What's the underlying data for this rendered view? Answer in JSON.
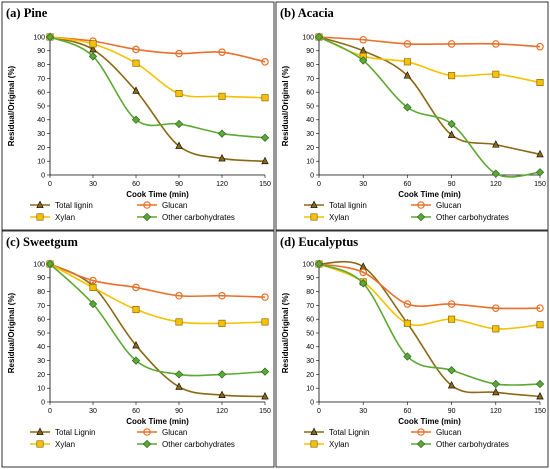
{
  "chart_data": [
    {
      "type": "line",
      "title": "(a) Pine",
      "xlabel": "Cook Time (min)",
      "ylabel": "Residual/Original (%)",
      "x": [
        0,
        30,
        60,
        90,
        120,
        150
      ],
      "xlim": [
        0,
        150
      ],
      "ylim": [
        0,
        100
      ],
      "xticks": [
        "0",
        "30",
        "60",
        "90",
        "120",
        "150"
      ],
      "yticks": [
        "0",
        "10",
        "20",
        "30",
        "40",
        "50",
        "60",
        "70",
        "80",
        "90",
        "100"
      ],
      "legend_position": "bottom",
      "series": [
        {
          "name": "Total lignin",
          "values": [
            100,
            91,
            61,
            21,
            12,
            10
          ],
          "color": "#8B6914",
          "marker": "triangle"
        },
        {
          "name": "Glucan",
          "values": [
            100,
            97,
            91,
            88,
            89,
            82
          ],
          "color": "#E8702A",
          "marker": "circle"
        },
        {
          "name": "Xylan",
          "values": [
            100,
            95,
            81,
            59,
            57,
            56
          ],
          "color": "#F5C100",
          "marker": "square"
        },
        {
          "name": "Other carbohydrates",
          "values": [
            100,
            86,
            40,
            37,
            30,
            27
          ],
          "color": "#5DA832",
          "marker": "diamond"
        }
      ]
    },
    {
      "type": "line",
      "title": "(b) Acacia",
      "xlabel": "Cook Time (min)",
      "ylabel": "Residual/Original (%)",
      "x": [
        0,
        30,
        60,
        90,
        120,
        150
      ],
      "xlim": [
        0,
        150
      ],
      "ylim": [
        0,
        100
      ],
      "xticks": [
        "0",
        "30",
        "60",
        "90",
        "120",
        "150"
      ],
      "yticks": [
        "0",
        "10",
        "20",
        "30",
        "40",
        "50",
        "60",
        "70",
        "80",
        "90",
        "100"
      ],
      "legend_position": "bottom",
      "series": [
        {
          "name": "Total lignin",
          "values": [
            100,
            90,
            72,
            29,
            22,
            15
          ],
          "color": "#8B6914",
          "marker": "triangle"
        },
        {
          "name": "Glucan",
          "values": [
            100,
            98,
            95,
            95,
            95,
            93
          ],
          "color": "#E8702A",
          "marker": "circle"
        },
        {
          "name": "Xylan",
          "values": [
            100,
            86,
            82,
            72,
            73,
            67
          ],
          "color": "#F5C100",
          "marker": "square"
        },
        {
          "name": "Other carbohydrates",
          "values": [
            100,
            83,
            49,
            37,
            1,
            2
          ],
          "color": "#5DA832",
          "marker": "diamond"
        }
      ]
    },
    {
      "type": "line",
      "title": "(c) Sweetgum",
      "xlabel": "Cook Time (min)",
      "ylabel": "Residual/Original (%)",
      "x": [
        0,
        30,
        60,
        90,
        120,
        150
      ],
      "xlim": [
        0,
        150
      ],
      "ylim": [
        0,
        100
      ],
      "xticks": [
        "0",
        "30",
        "60",
        "90",
        "120",
        "150"
      ],
      "yticks": [
        "0",
        "10",
        "20",
        "30",
        "40",
        "50",
        "60",
        "70",
        "80",
        "90",
        "100"
      ],
      "legend_position": "bottom",
      "series": [
        {
          "name": "Total Lignin",
          "values": [
            100,
            84,
            41,
            11,
            5,
            4
          ],
          "color": "#8B6914",
          "marker": "triangle"
        },
        {
          "name": "Glucan",
          "values": [
            100,
            88,
            83,
            77,
            77,
            76
          ],
          "color": "#E8702A",
          "marker": "circle"
        },
        {
          "name": "Xylan",
          "values": [
            100,
            83,
            67,
            58,
            57,
            58
          ],
          "color": "#F5C100",
          "marker": "square"
        },
        {
          "name": "Other carbohydrates",
          "values": [
            100,
            71,
            30,
            20,
            20,
            22
          ],
          "color": "#5DA832",
          "marker": "diamond"
        }
      ]
    },
    {
      "type": "line",
      "title": "(d) Eucalyptus",
      "xlabel": "Cook Time (min)",
      "ylabel": "Residual/Original (%)",
      "x": [
        0,
        30,
        60,
        90,
        120,
        150
      ],
      "xlim": [
        0,
        150
      ],
      "ylim": [
        0,
        100
      ],
      "xticks": [
        "0",
        "30",
        "60",
        "90",
        "120",
        "150"
      ],
      "yticks": [
        "0",
        "10",
        "20",
        "30",
        "40",
        "50",
        "60",
        "70",
        "80",
        "90",
        "100"
      ],
      "legend_position": "bottom",
      "series": [
        {
          "name": "Total Lignin",
          "values": [
            100,
            98,
            57,
            12,
            7,
            4
          ],
          "color": "#8B6914",
          "marker": "triangle"
        },
        {
          "name": "Glucan",
          "values": [
            100,
            94,
            71,
            71,
            68,
            68
          ],
          "color": "#E8702A",
          "marker": "circle"
        },
        {
          "name": "Xylan",
          "values": [
            100,
            87,
            57,
            60,
            53,
            56
          ],
          "color": "#F5C100",
          "marker": "square"
        },
        {
          "name": "Other carbohydrates",
          "values": [
            100,
            86,
            33,
            23,
            13,
            13
          ],
          "color": "#5DA832",
          "marker": "diamond"
        }
      ]
    }
  ]
}
